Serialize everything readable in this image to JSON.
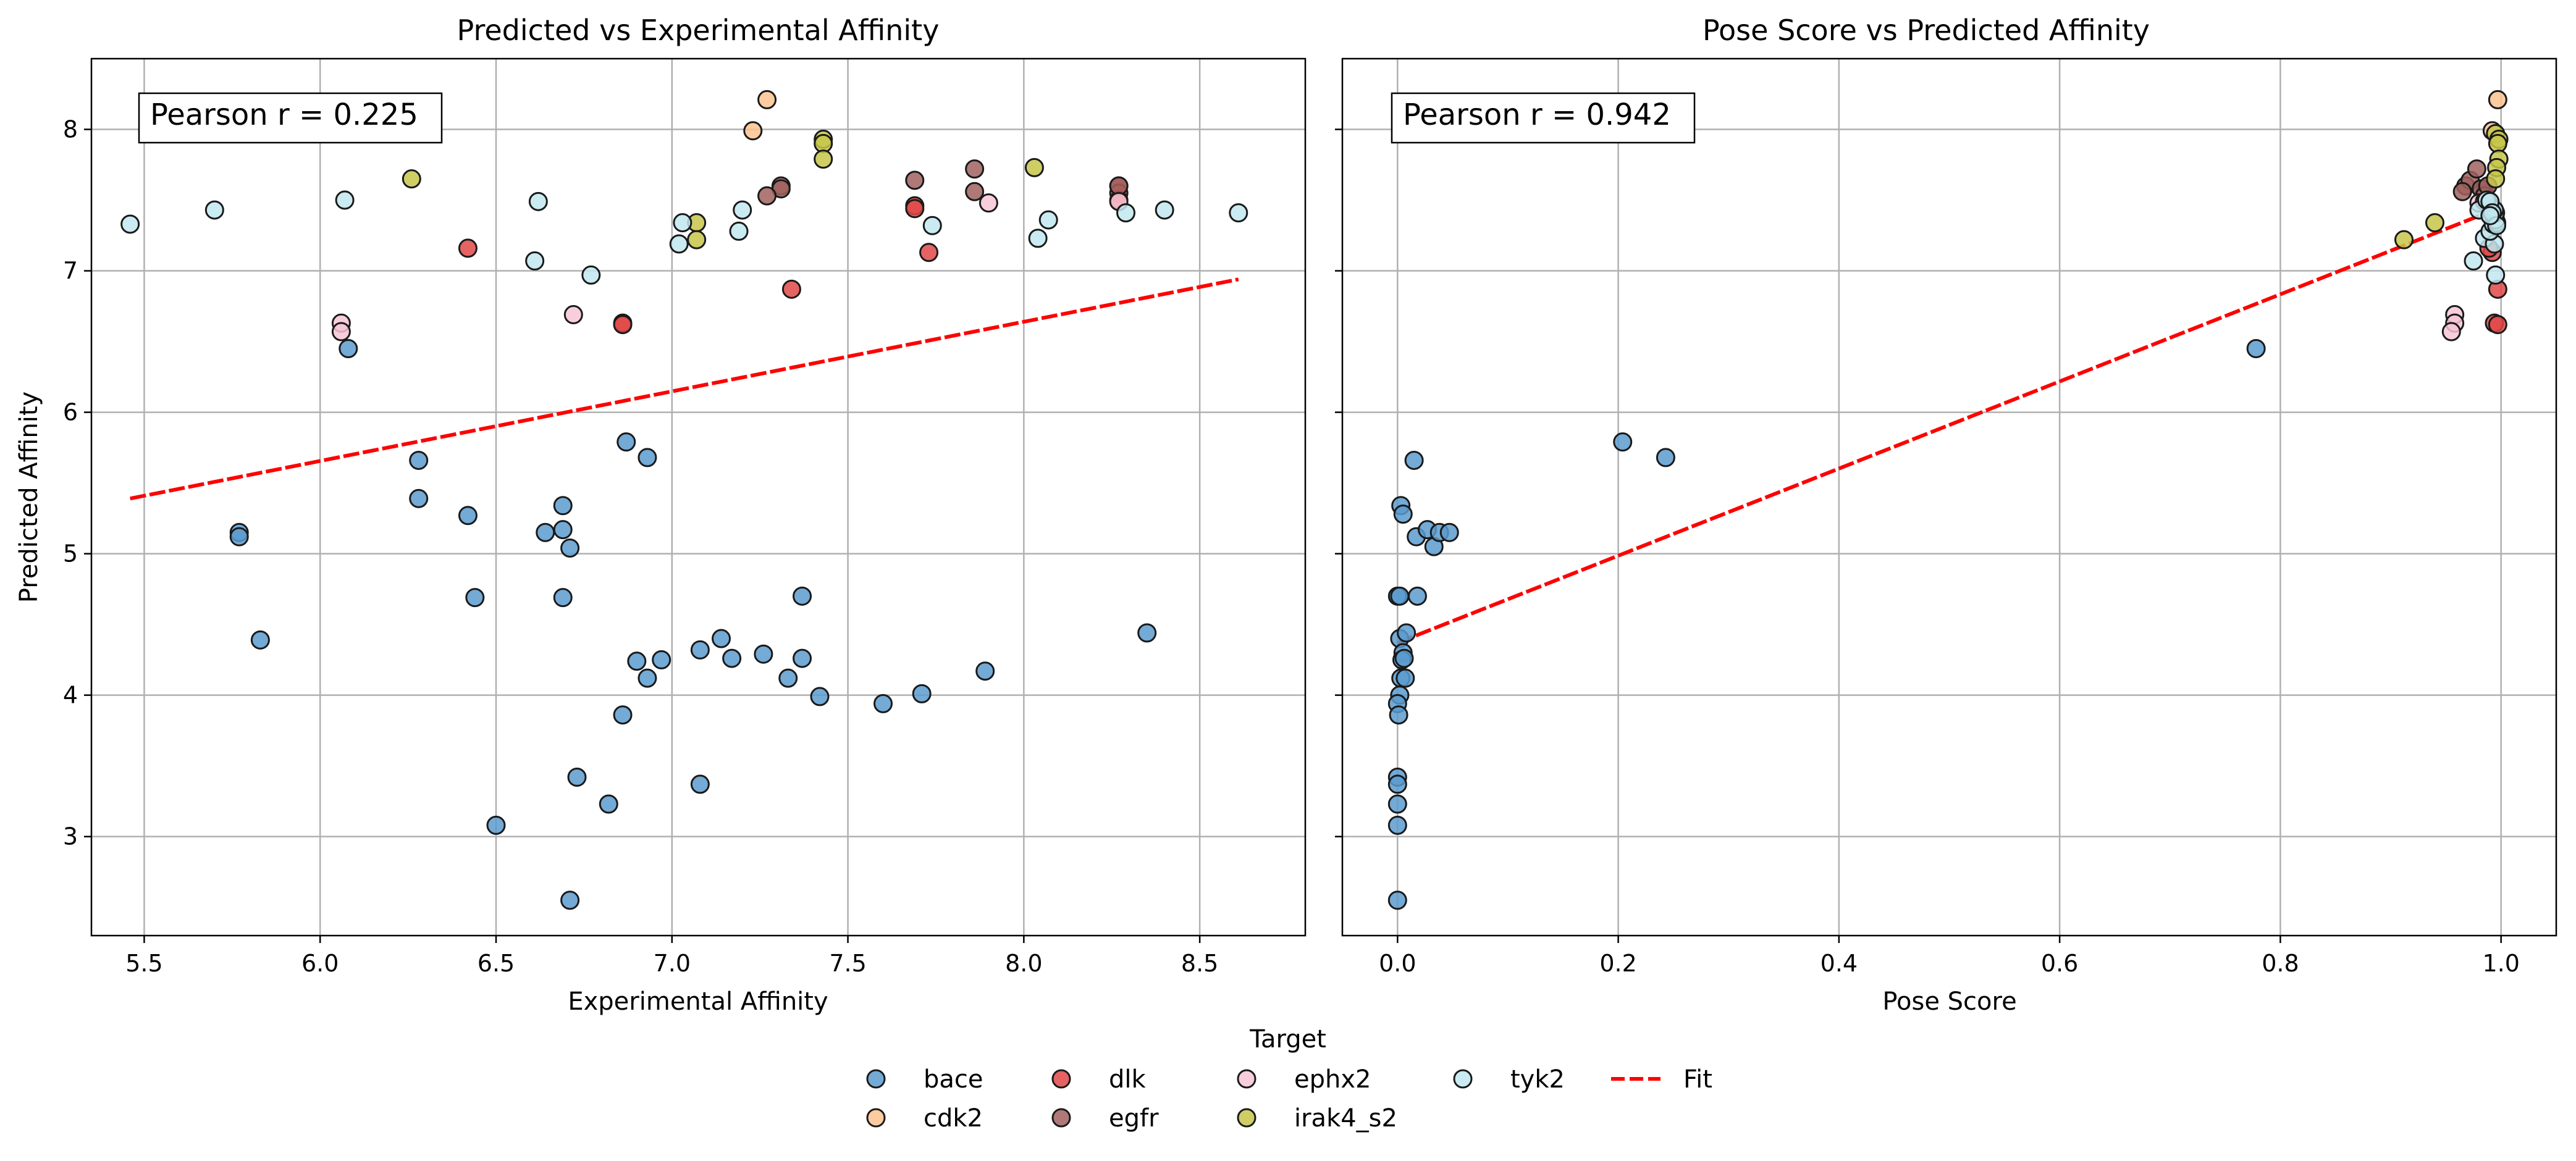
{
  "chart_data": [
    {
      "type": "scatter",
      "title": "Predicted vs Experimental Affinity",
      "xlabel": "Experimental Affinity",
      "ylabel": "Predicted Affinity",
      "xlim": [
        5.35,
        8.8
      ],
      "ylim": [
        2.3,
        8.5
      ],
      "xticks": [
        5.5,
        6.0,
        6.5,
        7.0,
        7.5,
        8.0,
        8.5
      ],
      "xtick_labels": [
        "5.5",
        "6.0",
        "6.5",
        "7.0",
        "7.5",
        "8.0",
        "8.5"
      ],
      "yticks": [
        3,
        4,
        5,
        6,
        7,
        8
      ],
      "ytick_labels": [
        "3",
        "4",
        "5",
        "6",
        "7",
        "8"
      ],
      "grid": true,
      "annotation": "Pearson r = 0.225",
      "fit_line": [
        [
          5.46,
          5.39
        ],
        [
          8.61,
          6.94
        ]
      ],
      "series": [
        {
          "name": "bace",
          "color": "#5a9bcf",
          "points": [
            [
              5.77,
              5.15
            ],
            [
              5.77,
              5.12
            ],
            [
              5.83,
              4.39
            ],
            [
              6.08,
              6.45
            ],
            [
              6.28,
              5.66
            ],
            [
              6.28,
              5.39
            ],
            [
              6.42,
              5.27
            ],
            [
              6.44,
              4.69
            ],
            [
              6.5,
              3.08
            ],
            [
              6.64,
              5.15
            ],
            [
              6.69,
              5.34
            ],
            [
              6.69,
              5.17
            ],
            [
              6.69,
              4.69
            ],
            [
              6.71,
              5.04
            ],
            [
              6.71,
              2.55
            ],
            [
              6.73,
              3.42
            ],
            [
              6.82,
              3.23
            ],
            [
              6.86,
              3.86
            ],
            [
              6.87,
              5.79
            ],
            [
              6.9,
              4.24
            ],
            [
              6.93,
              5.68
            ],
            [
              6.93,
              4.12
            ],
            [
              6.97,
              4.25
            ],
            [
              7.08,
              4.32
            ],
            [
              7.08,
              3.37
            ],
            [
              7.14,
              4.4
            ],
            [
              7.17,
              4.26
            ],
            [
              7.26,
              4.29
            ],
            [
              7.33,
              4.12
            ],
            [
              7.37,
              4.7
            ],
            [
              7.37,
              4.26
            ],
            [
              7.42,
              3.99
            ],
            [
              7.6,
              3.94
            ],
            [
              7.71,
              4.01
            ],
            [
              7.89,
              4.17
            ],
            [
              8.35,
              4.44
            ]
          ]
        },
        {
          "name": "cdk2",
          "color": "#fcc38f",
          "points": [
            [
              7.27,
              8.21
            ],
            [
              7.23,
              7.99
            ]
          ]
        },
        {
          "name": "dlk",
          "color": "#e04848",
          "points": [
            [
              6.42,
              7.16
            ],
            [
              6.86,
              6.63
            ],
            [
              6.86,
              6.62
            ],
            [
              7.34,
              6.87
            ],
            [
              7.69,
              7.46
            ],
            [
              7.69,
              7.44
            ],
            [
              7.73,
              7.13
            ],
            [
              8.27,
              7.6
            ],
            [
              8.27,
              7.55
            ],
            [
              8.27,
              7.5
            ]
          ]
        },
        {
          "name": "egfr",
          "color": "#a0615e",
          "points": [
            [
              7.31,
              7.6
            ],
            [
              7.31,
              7.58
            ],
            [
              7.27,
              7.53
            ],
            [
              7.69,
              7.64
            ],
            [
              7.86,
              7.72
            ],
            [
              7.86,
              7.56
            ],
            [
              8.27,
              7.6
            ]
          ]
        },
        {
          "name": "ephx2",
          "color": "#f7c6d6",
          "points": [
            [
              6.06,
              6.63
            ],
            [
              6.06,
              6.57
            ],
            [
              6.72,
              6.69
            ],
            [
              7.9,
              7.48
            ],
            [
              8.27,
              7.49
            ]
          ]
        },
        {
          "name": "irak4_s2",
          "color": "#c7c54a",
          "points": [
            [
              6.16,
              7.97
            ],
            [
              6.26,
              7.65
            ],
            [
              7.07,
              7.34
            ],
            [
              7.07,
              7.22
            ],
            [
              7.43,
              7.93
            ],
            [
              7.43,
              7.9
            ],
            [
              7.43,
              7.79
            ],
            [
              8.03,
              7.73
            ]
          ]
        },
        {
          "name": "tyk2",
          "color": "#bfe7ee",
          "points": [
            [
              5.46,
              7.33
            ],
            [
              5.7,
              7.43
            ],
            [
              6.07,
              7.5
            ],
            [
              6.61,
              7.07
            ],
            [
              6.62,
              7.49
            ],
            [
              6.77,
              6.97
            ],
            [
              7.02,
              7.19
            ],
            [
              7.03,
              7.34
            ],
            [
              7.19,
              7.28
            ],
            [
              7.2,
              7.43
            ],
            [
              7.74,
              7.32
            ],
            [
              8.04,
              7.23
            ],
            [
              8.07,
              7.36
            ],
            [
              8.29,
              7.41
            ],
            [
              8.4,
              7.43
            ],
            [
              8.61,
              7.41
            ]
          ]
        }
      ]
    },
    {
      "type": "scatter",
      "title": "Pose Score vs Predicted Affinity",
      "xlabel": "Pose Score",
      "ylabel": "",
      "xlim": [
        -0.05,
        1.05
      ],
      "ylim": [
        2.3,
        8.5
      ],
      "xticks": [
        0.0,
        0.2,
        0.4,
        0.6,
        0.8,
        1.0
      ],
      "xtick_labels": [
        "0.0",
        "0.2",
        "0.4",
        "0.6",
        "0.8",
        "1.0"
      ],
      "yticks": [
        3,
        4,
        5,
        6,
        7,
        8
      ],
      "ytick_labels": [
        "",
        "",
        "",
        "",
        "",
        ""
      ],
      "grid": true,
      "annotation": "Pearson r = 0.942",
      "fit_line": [
        [
          0.0,
          4.37
        ],
        [
          1.0,
          7.45
        ]
      ],
      "series": [
        {
          "name": "bace",
          "color": "#5a9bcf",
          "points": [
            [
              0.003,
              5.34
            ],
            [
              0.005,
              5.28
            ],
            [
              0.015,
              5.66
            ],
            [
              0.017,
              5.12
            ],
            [
              0.027,
              5.17
            ],
            [
              0.033,
              5.05
            ],
            [
              0.038,
              5.15
            ],
            [
              0.047,
              5.15
            ],
            [
              0.018,
              4.7
            ],
            [
              0.0,
              4.7
            ],
            [
              0.002,
              4.7
            ],
            [
              0.002,
              4.4
            ],
            [
              0.008,
              4.44
            ],
            [
              0.005,
              4.3
            ],
            [
              0.004,
              4.25
            ],
            [
              0.003,
              4.12
            ],
            [
              0.007,
              4.12
            ],
            [
              0.002,
              4.0
            ],
            [
              0.0,
              3.94
            ],
            [
              0.001,
              3.86
            ],
            [
              0.0,
              3.42
            ],
            [
              0.0,
              3.37
            ],
            [
              0.0,
              3.23
            ],
            [
              0.0,
              3.08
            ],
            [
              0.0,
              2.55
            ],
            [
              0.204,
              5.79
            ],
            [
              0.243,
              5.68
            ],
            [
              0.778,
              6.45
            ],
            [
              0.006,
              4.26
            ]
          ]
        },
        {
          "name": "cdk2",
          "color": "#fcc38f",
          "points": [
            [
              0.997,
              8.21
            ],
            [
              0.992,
              7.99
            ]
          ]
        },
        {
          "name": "dlk",
          "color": "#e04848",
          "points": [
            [
              0.994,
              6.63
            ],
            [
              0.997,
              6.62
            ],
            [
              0.997,
              6.87
            ],
            [
              0.992,
              7.13
            ],
            [
              0.989,
              7.16
            ],
            [
              0.99,
              7.46
            ],
            [
              0.99,
              7.44
            ],
            [
              0.985,
              7.55
            ]
          ]
        },
        {
          "name": "egfr",
          "color": "#a0615e",
          "points": [
            [
              0.968,
              7.6
            ],
            [
              0.972,
              7.64
            ],
            [
              0.978,
              7.72
            ],
            [
              0.982,
              7.58
            ],
            [
              0.985,
              7.53
            ],
            [
              0.965,
              7.56
            ],
            [
              0.988,
              7.6
            ]
          ]
        },
        {
          "name": "ephx2",
          "color": "#f7c6d6",
          "points": [
            [
              0.958,
              6.69
            ],
            [
              0.958,
              6.63
            ],
            [
              0.955,
              6.57
            ],
            [
              0.98,
              7.48
            ],
            [
              0.985,
              7.49
            ]
          ]
        },
        {
          "name": "irak4_s2",
          "color": "#c7c54a",
          "points": [
            [
              0.912,
              7.22
            ],
            [
              0.94,
              7.34
            ],
            [
              0.995,
              7.97
            ],
            [
              0.998,
              7.93
            ],
            [
              0.997,
              7.9
            ],
            [
              0.998,
              7.79
            ],
            [
              0.996,
              7.73
            ],
            [
              0.995,
              7.65
            ]
          ]
        },
        {
          "name": "tyk2",
          "color": "#bfe7ee",
          "points": [
            [
              0.975,
              7.07
            ],
            [
              0.985,
              7.23
            ],
            [
              0.995,
              6.97
            ],
            [
              0.994,
              7.19
            ],
            [
              0.99,
              7.28
            ],
            [
              0.993,
              7.33
            ],
            [
              0.996,
              7.34
            ],
            [
              0.995,
              7.36
            ],
            [
              0.995,
              7.41
            ],
            [
              0.994,
              7.43
            ],
            [
              0.98,
              7.43
            ],
            [
              0.987,
              7.5
            ],
            [
              0.99,
              7.49
            ],
            [
              0.992,
              7.41
            ],
            [
              0.996,
              7.32
            ],
            [
              0.99,
              7.39
            ]
          ]
        }
      ]
    }
  ],
  "legend": {
    "title": "Target",
    "items": [
      {
        "label": "bace",
        "kind": "marker",
        "color": "#5a9bcf"
      },
      {
        "label": "cdk2",
        "kind": "marker",
        "color": "#fcc38f"
      },
      {
        "label": "dlk",
        "kind": "marker",
        "color": "#e04848"
      },
      {
        "label": "egfr",
        "kind": "marker",
        "color": "#a0615e"
      },
      {
        "label": "ephx2",
        "kind": "marker",
        "color": "#f7c6d6"
      },
      {
        "label": "irak4_s2",
        "kind": "marker",
        "color": "#c7c54a"
      },
      {
        "label": "tyk2",
        "kind": "marker",
        "color": "#bfe7ee"
      },
      {
        "label": "Fit",
        "kind": "line",
        "color": "#ff0000"
      }
    ]
  }
}
